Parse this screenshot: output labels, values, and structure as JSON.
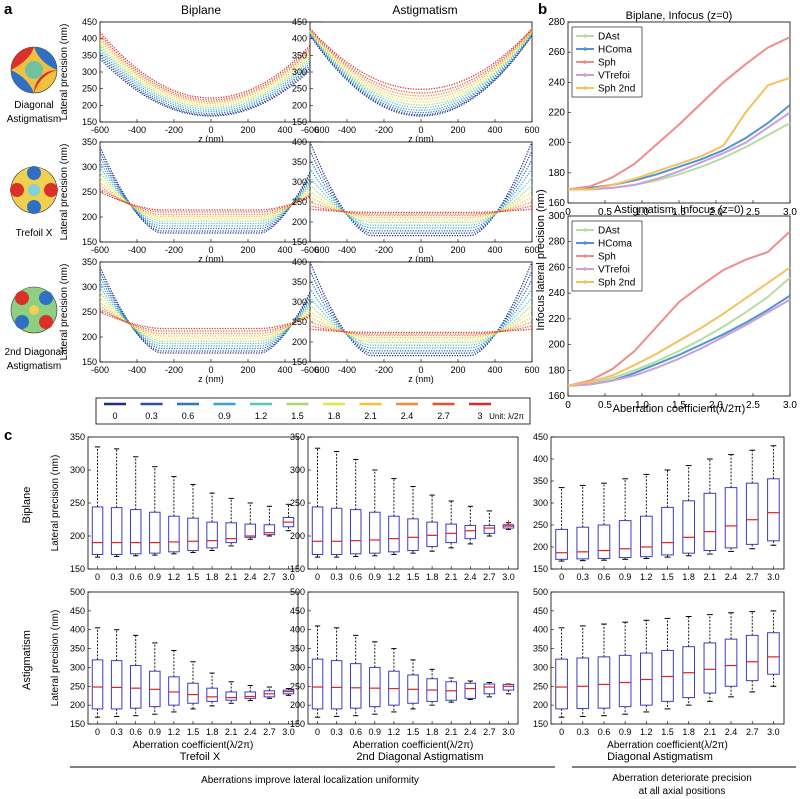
{
  "panel_labels": {
    "a": "a",
    "b": "b",
    "c": "c"
  },
  "panel_a": {
    "col_titles": [
      "Biplane",
      "Astigmatism"
    ],
    "ylabel": "Lateral precision (nm)",
    "xlabel": "z (nm)",
    "row_labels": [
      [
        "Diagonal",
        "Astigmatism"
      ],
      [
        "Trefoil X"
      ],
      [
        "2nd Diagonal",
        "Astigmatism"
      ]
    ],
    "legend_unit": "Unit: λ/2π"
  },
  "panel_b": {
    "titles": [
      "Biplane, Infocus (z=0)",
      "Astigmatism, Infocus (z=0)"
    ],
    "ylabel": "Infocus lateral precision (nm)",
    "xlabel": "Aberration coefficient(λ/2π)"
  },
  "panel_c": {
    "row_labels": [
      "Biplane",
      "Astigmatism"
    ],
    "ylabel": "Lateral precision (nm)",
    "xlabel": "Aberration coefficient(λ/2π)",
    "col_titles": [
      "Trefoil X",
      "2nd Diagonal Astigmatism",
      "Diagonal Astigmatism"
    ],
    "footer_left": "Aberrations improve lateral localization uniformity",
    "footer_right": [
      "Aberration deteriorate precision",
      "at all axial positions"
    ]
  },
  "colors": {
    "box": "#3b3bc4",
    "median": "#e0241c",
    "whisker": "#000000",
    "aberration_scale": [
      "#1f2d8a",
      "#2c4ea8",
      "#2f74c6",
      "#37a3d8",
      "#5dc5c0",
      "#a6d96a",
      "#e3e645",
      "#f6c03b",
      "#f5893a",
      "#e6522e",
      "#d62d2d"
    ]
  },
  "chart_data": [
    {
      "id": "a-Diagonal-Astigmatism-Biplane",
      "type": "line",
      "x_range": [
        -600,
        600
      ],
      "ylim": [
        150,
        450
      ],
      "xticks": [
        -600,
        -400,
        -200,
        0,
        200,
        400,
        600
      ],
      "yticks": [
        150,
        200,
        250,
        300,
        350,
        400,
        450
      ],
      "series_names": [
        "0",
        "0.3",
        "0.6",
        "0.9",
        "1.2",
        "1.5",
        "1.8",
        "2.1",
        "2.4",
        "2.7",
        "3"
      ],
      "center_values": [
        168,
        171,
        176,
        182,
        188,
        194,
        200,
        206,
        211,
        216,
        222
      ],
      "edge_values": [
        340,
        348,
        356,
        364,
        372,
        380,
        388,
        396,
        404,
        412,
        420
      ]
    },
    {
      "id": "a-Diagonal-Astigmatism-Astigmatism",
      "type": "line",
      "x_range": [
        -600,
        600
      ],
      "ylim": [
        150,
        450
      ],
      "xticks": [
        -600,
        -400,
        -200,
        0,
        200,
        400,
        600
      ],
      "yticks": [
        150,
        200,
        250,
        300,
        350,
        400,
        450
      ],
      "series_names": [
        "0",
        "0.3",
        "0.6",
        "0.9",
        "1.2",
        "1.5",
        "1.8",
        "2.1",
        "2.4",
        "2.7",
        "3"
      ],
      "center_values": [
        168,
        172,
        178,
        185,
        193,
        201,
        210,
        219,
        228,
        237,
        248
      ],
      "edge_values": [
        410,
        412,
        414,
        416,
        418,
        420,
        422,
        424,
        426,
        428,
        430
      ]
    },
    {
      "id": "a-Trefoil-X-Biplane",
      "type": "line",
      "x_range": [
        -600,
        600
      ],
      "ylim": [
        150,
        350
      ],
      "xticks": [
        -600,
        -400,
        -200,
        0,
        200,
        400,
        600
      ],
      "yticks": [
        150,
        200,
        250,
        300,
        350
      ],
      "series_names": [
        "0",
        "0.3",
        "0.6",
        "0.9",
        "1.2",
        "1.5",
        "1.8",
        "2.1",
        "2.4",
        "2.7",
        "3"
      ],
      "center_values": [
        168,
        172,
        177,
        182,
        187,
        192,
        197,
        201,
        205,
        210,
        214
      ],
      "edge_values": [
        340,
        330,
        320,
        310,
        300,
        290,
        280,
        270,
        262,
        256,
        250
      ]
    },
    {
      "id": "a-Trefoil-X-Astigmatism",
      "type": "line",
      "x_range": [
        -600,
        600
      ],
      "ylim": [
        150,
        400
      ],
      "xticks": [
        -600,
        -400,
        -200,
        0,
        200,
        400,
        600
      ],
      "yticks": [
        150,
        200,
        250,
        300,
        350,
        400
      ],
      "series_names": [
        "0",
        "0.3",
        "0.6",
        "0.9",
        "1.2",
        "1.5",
        "1.8",
        "2.1",
        "2.4",
        "2.7",
        "3"
      ],
      "center_values": [
        166,
        172,
        178,
        185,
        192,
        199,
        205,
        211,
        216,
        220,
        224
      ],
      "edge_values": [
        400,
        378,
        356,
        334,
        312,
        292,
        276,
        262,
        250,
        240,
        232
      ]
    },
    {
      "id": "a-2nd-Diagonal-Astigmatism-Biplane",
      "type": "line",
      "x_range": [
        -600,
        600
      ],
      "ylim": [
        150,
        350
      ],
      "xticks": [
        -600,
        -400,
        -200,
        0,
        200,
        400,
        600
      ],
      "yticks": [
        150,
        200,
        250,
        300,
        350
      ],
      "series_names": [
        "0",
        "0.3",
        "0.6",
        "0.9",
        "1.2",
        "1.5",
        "1.8",
        "2.1",
        "2.4",
        "2.7",
        "3"
      ],
      "center_values": [
        168,
        172,
        177,
        182,
        187,
        192,
        197,
        202,
        207,
        212,
        217
      ],
      "edge_values": [
        340,
        330,
        320,
        310,
        300,
        290,
        280,
        270,
        262,
        256,
        250
      ]
    },
    {
      "id": "a-2nd-Diagonal-Astigmatism-Astigmatism",
      "type": "line",
      "x_range": [
        -600,
        600
      ],
      "ylim": [
        150,
        400
      ],
      "xticks": [
        -600,
        -400,
        -200,
        0,
        200,
        400,
        600
      ],
      "yticks": [
        150,
        200,
        250,
        300,
        350,
        400
      ],
      "series_names": [
        "0",
        "0.3",
        "0.6",
        "0.9",
        "1.2",
        "1.5",
        "1.8",
        "2.1",
        "2.4",
        "2.7",
        "3"
      ],
      "center_values": [
        166,
        172,
        178,
        185,
        192,
        199,
        205,
        211,
        216,
        220,
        224
      ],
      "edge_values": [
        400,
        378,
        356,
        334,
        312,
        292,
        276,
        262,
        250,
        240,
        232
      ]
    },
    {
      "id": "b-Biplane",
      "type": "line",
      "title": "Biplane, Infocus (z=0)",
      "xlim": [
        0,
        3
      ],
      "ylim": [
        160,
        280
      ],
      "xticks": [
        0,
        0.5,
        1,
        1.5,
        2,
        2.5,
        3
      ],
      "xtick_labels": [
        "0",
        "0.5",
        "1.0",
        "1.5",
        "2.0",
        "2.5",
        "3.0"
      ],
      "yticks": [
        160,
        180,
        200,
        220,
        240,
        260,
        280
      ],
      "x": [
        0,
        0.3,
        0.6,
        0.9,
        1.2,
        1.5,
        1.8,
        2.1,
        2.4,
        2.7,
        3.0
      ],
      "series": [
        {
          "name": "DAst",
          "color": "#b8dca0",
          "values": [
            169,
            169,
            170,
            172,
            175,
            179,
            184,
            190,
            197,
            205,
            213
          ]
        },
        {
          "name": "HComa",
          "color": "#4f96cf",
          "values": [
            169,
            170,
            172,
            175,
            179,
            184,
            189,
            195,
            203,
            213,
            225
          ]
        },
        {
          "name": "Sph",
          "color": "#f08c8c",
          "values": [
            169,
            171,
            177,
            186,
            199,
            212,
            226,
            240,
            252,
            263,
            270
          ]
        },
        {
          "name": "VTrefoi",
          "color": "#c9a0dc",
          "values": [
            169,
            169,
            170,
            172,
            176,
            181,
            187,
            193,
            200,
            210,
            220
          ]
        },
        {
          "name": "Sph 2nd",
          "color": "#f6bf60",
          "values": [
            169,
            169,
            172,
            176,
            181,
            186,
            191,
            198,
            220,
            238,
            243
          ]
        }
      ]
    },
    {
      "id": "b-Astigmatism",
      "type": "line",
      "title": "Astigmatism, Infocus (z=0)",
      "xlim": [
        0,
        3
      ],
      "ylim": [
        160,
        300
      ],
      "xticks": [
        0,
        0.5,
        1,
        1.5,
        2,
        2.5,
        3
      ],
      "xtick_labels": [
        "0",
        "0.5",
        "1.0",
        "1.5",
        "2.0",
        "2.5",
        "3.0"
      ],
      "yticks": [
        160,
        180,
        200,
        220,
        240,
        260,
        280,
        300
      ],
      "x": [
        0,
        0.3,
        0.6,
        0.9,
        1.2,
        1.5,
        1.8,
        2.1,
        2.4,
        2.7,
        3.0
      ],
      "series": [
        {
          "name": "DAst",
          "color": "#b8dca0",
          "values": [
            168,
            170,
            174,
            180,
            187,
            195,
            204,
            214,
            225,
            237,
            252
          ]
        },
        {
          "name": "HComa",
          "color": "#4f96cf",
          "values": [
            168,
            169,
            172,
            178,
            185,
            192,
            200,
            208,
            217,
            227,
            238
          ]
        },
        {
          "name": "Sph",
          "color": "#f08c8c",
          "values": [
            168,
            172,
            181,
            195,
            214,
            233,
            246,
            258,
            266,
            272,
            288
          ]
        },
        {
          "name": "VTrefoi",
          "color": "#c9a0dc",
          "values": [
            168,
            169,
            172,
            176,
            182,
            189,
            197,
            206,
            215,
            225,
            235
          ]
        },
        {
          "name": "Sph 2nd",
          "color": "#f6bf60",
          "values": [
            168,
            171,
            176,
            184,
            193,
            203,
            213,
            224,
            236,
            248,
            260
          ]
        }
      ]
    },
    {
      "id": "c-Biplane-Trefoil-X",
      "type": "box",
      "categories": [
        "0",
        "0.3",
        "0.6",
        "0.9",
        "1.2",
        "1.5",
        "1.8",
        "2.1",
        "2.4",
        "2.7",
        "3.0"
      ],
      "ylim": [
        150,
        350
      ],
      "yticks": [
        150,
        200,
        250,
        300,
        350
      ],
      "whisker_low": [
        168,
        169,
        170,
        171,
        173,
        175,
        178,
        185,
        195,
        200,
        208
      ],
      "q1": [
        172,
        172,
        173,
        174,
        176,
        178,
        182,
        190,
        198,
        202,
        214
      ],
      "median": [
        190,
        190,
        190,
        190,
        191,
        192,
        193,
        196,
        200,
        205,
        221
      ],
      "q3": [
        244,
        243,
        240,
        236,
        230,
        227,
        221,
        220,
        218,
        217,
        228
      ],
      "whisker_high": [
        335,
        332,
        320,
        305,
        290,
        278,
        265,
        257,
        250,
        245,
        248
      ]
    },
    {
      "id": "c-Biplane-2nd-Diagonal-Astigmatism",
      "type": "box",
      "categories": [
        "0",
        "0.3",
        "0.6",
        "0.9",
        "1.2",
        "1.5",
        "1.8",
        "2.1",
        "2.4",
        "2.7",
        "3.0"
      ],
      "ylim": [
        150,
        350
      ],
      "yticks": [
        150,
        200,
        250,
        300,
        350
      ],
      "whisker_low": [
        168,
        168,
        169,
        170,
        172,
        174,
        177,
        182,
        188,
        200,
        210
      ],
      "q1": [
        172,
        172,
        173,
        174,
        176,
        178,
        184,
        190,
        196,
        204,
        212
      ],
      "median": [
        192,
        192,
        193,
        194,
        196,
        198,
        201,
        204,
        208,
        212,
        215
      ],
      "q3": [
        244,
        242,
        240,
        236,
        230,
        226,
        221,
        218,
        216,
        216,
        217
      ],
      "whisker_high": [
        333,
        328,
        316,
        300,
        287,
        275,
        262,
        253,
        245,
        238,
        220
      ],
      "outlier_index": 10
    },
    {
      "id": "c-Biplane-Diagonal-Astigmatism",
      "type": "box",
      "categories": [
        "0",
        "0.3",
        "0.6",
        "0.9",
        "1.2",
        "1.5",
        "1.8",
        "2.1",
        "2.4",
        "2.7",
        "3.0"
      ],
      "ylim": [
        150,
        450
      ],
      "yticks": [
        150,
        200,
        250,
        300,
        350,
        400,
        450
      ],
      "whisker_low": [
        168,
        169,
        170,
        172,
        174,
        177,
        180,
        184,
        190,
        196,
        204
      ],
      "q1": [
        172,
        173,
        174,
        176,
        178,
        182,
        186,
        192,
        198,
        206,
        214
      ],
      "median": [
        187,
        189,
        192,
        196,
        200,
        210,
        222,
        235,
        248,
        262,
        278
      ],
      "q3": [
        240,
        245,
        250,
        260,
        270,
        290,
        305,
        322,
        335,
        345,
        355
      ],
      "whisker_high": [
        335,
        340,
        345,
        355,
        365,
        375,
        385,
        400,
        410,
        420,
        430
      ]
    },
    {
      "id": "c-Astigmatism-Trefoil-X",
      "type": "box",
      "categories": [
        "0",
        "0.3",
        "0.6",
        "0.9",
        "1.2",
        "1.5",
        "1.8",
        "2.1",
        "2.4",
        "2.7",
        "3.0"
      ],
      "ylim": [
        150,
        500
      ],
      "yticks": [
        150,
        200,
        250,
        300,
        350,
        400,
        450,
        500
      ],
      "whisker_low": [
        168,
        170,
        172,
        176,
        182,
        190,
        198,
        205,
        212,
        218,
        226
      ],
      "q1": [
        190,
        190,
        192,
        196,
        200,
        205,
        210,
        213,
        218,
        222,
        230
      ],
      "median": [
        248,
        247,
        245,
        242,
        235,
        228,
        222,
        220,
        223,
        230,
        236
      ],
      "q3": [
        320,
        318,
        305,
        290,
        275,
        258,
        245,
        235,
        235,
        238,
        240
      ],
      "whisker_high": [
        405,
        400,
        385,
        365,
        345,
        315,
        285,
        262,
        252,
        248,
        244
      ]
    },
    {
      "id": "c-Astigmatism-2nd-Diagonal-Astigmatism",
      "type": "box",
      "categories": [
        "0",
        "0.3",
        "0.6",
        "0.9",
        "1.2",
        "1.5",
        "1.8",
        "2.1",
        "2.4",
        "2.7",
        "3.0"
      ],
      "ylim": [
        150,
        500
      ],
      "yticks": [
        150,
        200,
        250,
        300,
        350,
        400,
        450,
        500
      ],
      "whisker_low": [
        168,
        170,
        172,
        176,
        182,
        190,
        200,
        208,
        215,
        222,
        230
      ],
      "q1": [
        190,
        190,
        192,
        196,
        200,
        205,
        210,
        213,
        218,
        230,
        240
      ],
      "median": [
        248,
        247,
        246,
        245,
        244,
        242,
        240,
        238,
        244,
        248,
        250
      ],
      "q3": [
        322,
        318,
        310,
        300,
        290,
        280,
        270,
        262,
        258,
        256,
        255
      ],
      "whisker_high": [
        410,
        405,
        385,
        368,
        350,
        320,
        295,
        272,
        264,
        260,
        256
      ]
    },
    {
      "id": "c-Astigmatism-Diagonal-Astigmatism",
      "type": "box",
      "categories": [
        "0",
        "0.3",
        "0.6",
        "0.9",
        "1.2",
        "1.5",
        "1.8",
        "2.1",
        "2.4",
        "2.7",
        "3.0"
      ],
      "ylim": [
        150,
        500
      ],
      "yticks": [
        150,
        200,
        250,
        300,
        350,
        400,
        450,
        500
      ],
      "whisker_low": [
        168,
        170,
        172,
        176,
        182,
        190,
        200,
        210,
        222,
        235,
        250
      ],
      "q1": [
        190,
        191,
        192,
        196,
        200,
        210,
        220,
        232,
        250,
        265,
        282
      ],
      "median": [
        248,
        250,
        255,
        260,
        268,
        276,
        286,
        295,
        305,
        315,
        328
      ],
      "q3": [
        322,
        325,
        328,
        332,
        338,
        345,
        355,
        365,
        375,
        385,
        392
      ],
      "whisker_high": [
        405,
        410,
        415,
        420,
        425,
        430,
        435,
        440,
        445,
        448,
        450
      ]
    }
  ]
}
